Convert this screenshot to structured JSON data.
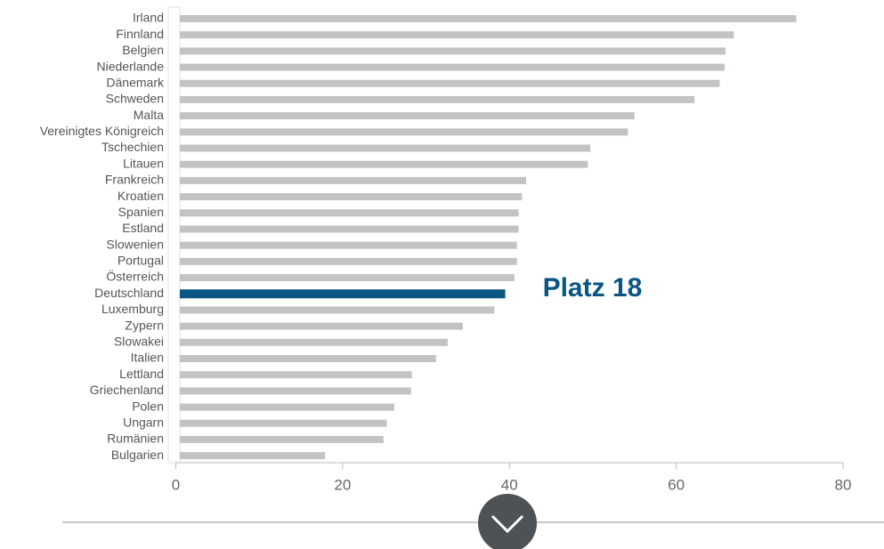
{
  "chart_data": {
    "type": "barh",
    "categories": [
      "Irland",
      "Finnland",
      "Belgien",
      "Niederlande",
      "Dänemark",
      "Schweden",
      "Malta",
      "Vereinigtes Königreich",
      "Tschechien",
      "Litauen",
      "Frankreich",
      "Kroatien",
      "Spanien",
      "Estland",
      "Slowenien",
      "Portugal",
      "Österreich",
      "Deutschland",
      "Luxemburg",
      "Zypern",
      "Slowakei",
      "Italien",
      "Lettland",
      "Griechenland",
      "Polen",
      "Ungarn",
      "Rumänien",
      "Bulgarien"
    ],
    "values": [
      74.4,
      66.9,
      65.9,
      65.8,
      65.2,
      62.2,
      55.0,
      54.2,
      49.7,
      49.4,
      42.0,
      41.5,
      41.1,
      41.1,
      40.9,
      40.9,
      40.6,
      39.5,
      38.2,
      34.4,
      32.6,
      31.2,
      28.3,
      28.2,
      26.2,
      25.3,
      24.9,
      17.9
    ],
    "colors": [
      "#c1c3c5",
      "#c1c3c5",
      "#c1c3c5",
      "#c1c3c5",
      "#c1c3c5",
      "#c1c3c5",
      "#c1c3c5",
      "#c1c3c5",
      "#c1c3c5",
      "#c1c3c5",
      "#c1c3c5",
      "#c1c3c5",
      "#c1c3c5",
      "#c1c3c5",
      "#c1c3c5",
      "#c1c3c5",
      "#c1c3c5",
      "#0b5583",
      "#c1c3c5",
      "#c1c3c5",
      "#c1c3c5",
      "#c1c3c5",
      "#c1c3c5",
      "#c1c3c5",
      "#c1c3c5",
      "#c1c3c5",
      "#c1c3c5",
      "#c1c3c5"
    ],
    "annotations": [
      {
        "text": "Platz 18",
        "category": "Deutschland"
      }
    ],
    "xlim": [
      0,
      80
    ],
    "xticks": [
      0,
      20,
      40,
      60,
      80
    ]
  }
}
